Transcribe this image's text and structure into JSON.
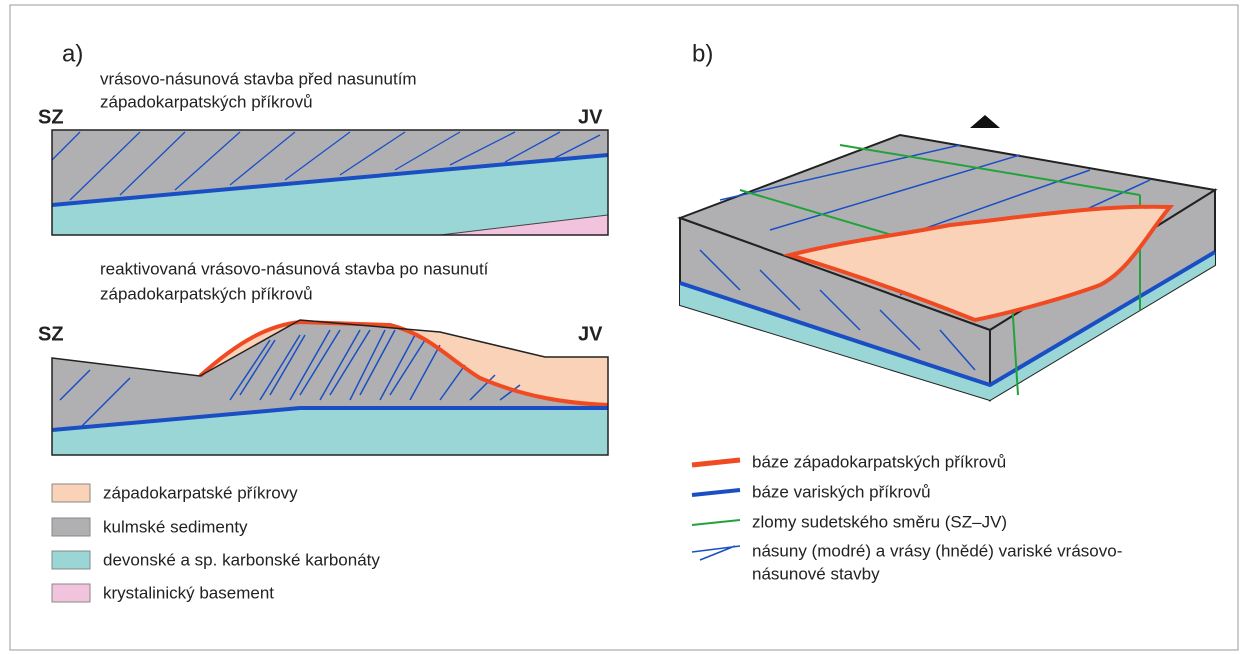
{
  "panel_a": {
    "label": "a)",
    "section_1": {
      "caption": [
        "vrásovo-násunová stavba před nasunutím",
        "západokarpatských příkrovů"
      ],
      "left": "SZ",
      "right": "JV"
    },
    "section_2": {
      "caption": [
        "reaktivovaná vrásovo-násunová stavba po nasunutí",
        "západokarpatských příkrovů"
      ],
      "left": "SZ",
      "right": "JV"
    },
    "legend": [
      "západokarpatské příkrovy",
      "kulmské sedimenty",
      "devonské a sp. karbonské karbonáty",
      "krystalinický basement"
    ]
  },
  "panel_b": {
    "label": "b)",
    "legend": [
      [
        "báze západokarpatských příkrovů"
      ],
      [
        "báze variských příkrovů"
      ],
      [
        "zlomy sudetského směru (SZ–JV)"
      ],
      [
        "násuny (modré) a vrásy (hnědé) variské vrásovo-",
        "násunové stavby"
      ]
    ]
  }
}
